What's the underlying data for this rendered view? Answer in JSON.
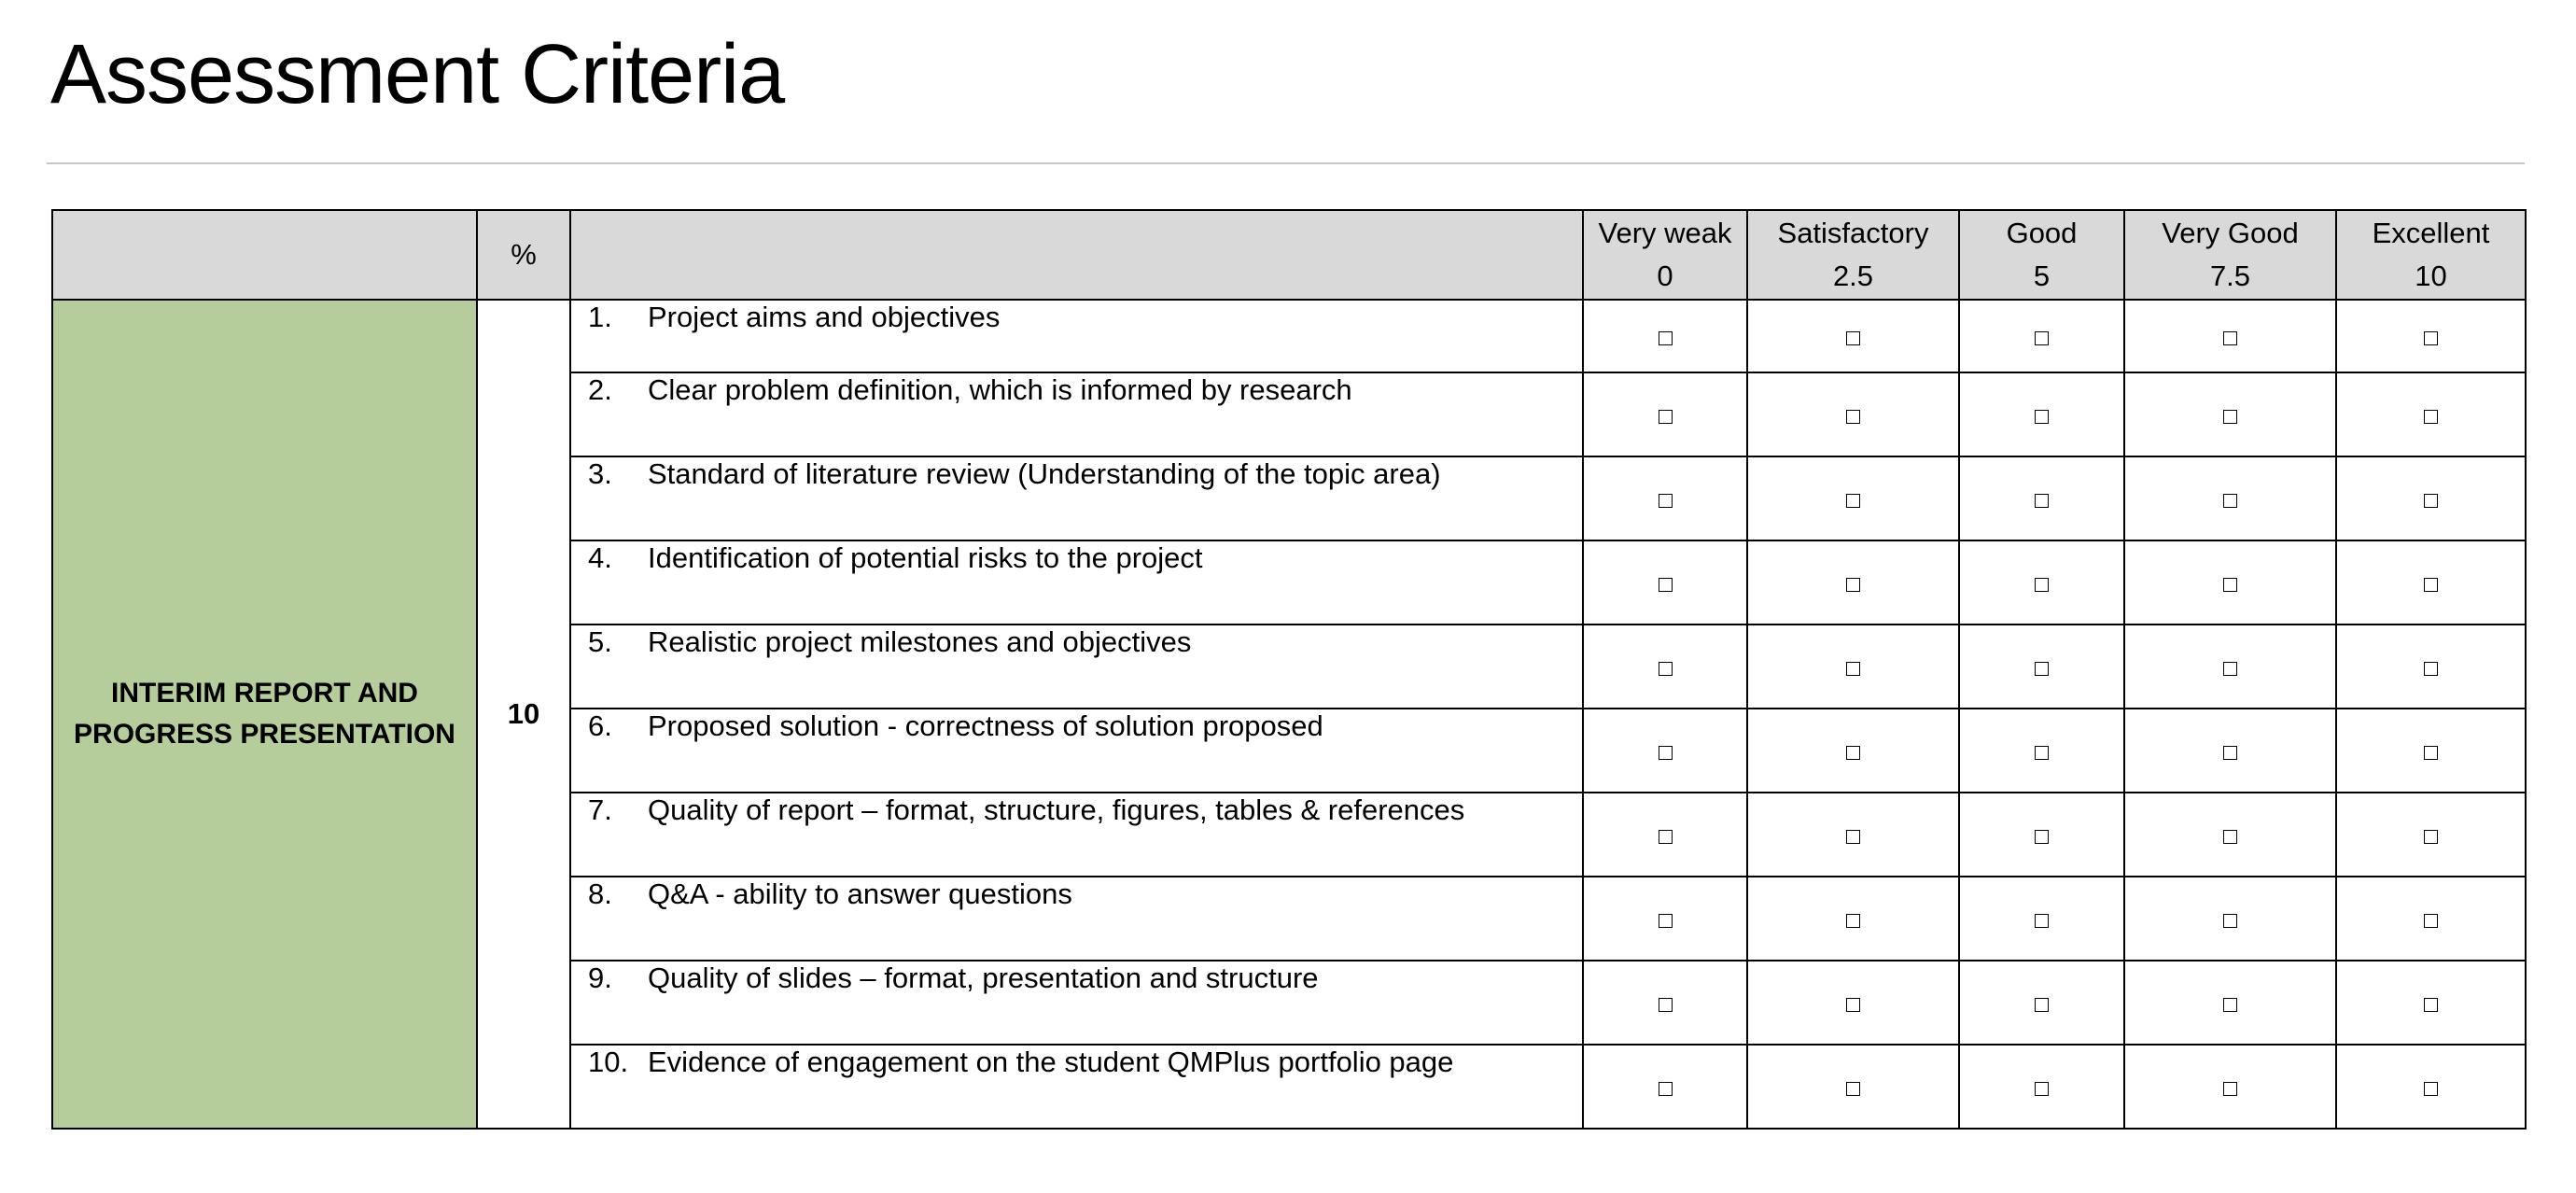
{
  "title": "Assessment Criteria",
  "header": {
    "percent_label": "%",
    "levels": [
      {
        "name": "Very weak",
        "score": "0"
      },
      {
        "name": "Satisfactory",
        "score": "2.5"
      },
      {
        "name": "Good",
        "score": "5"
      },
      {
        "name": "Very Good",
        "score": "7.5"
      },
      {
        "name": "Excellent",
        "score": "10"
      }
    ]
  },
  "section": {
    "name_line1": "INTERIM REPORT AND",
    "name_line2": "PROGRESS PRESENTATION",
    "weight": "10"
  },
  "criteria": [
    {
      "num": "1.",
      "text": "Project aims and objectives"
    },
    {
      "num": "2.",
      "text": "Clear problem definition, which is informed by research"
    },
    {
      "num": "3.",
      "text": "Standard of literature review (Understanding of the topic area)"
    },
    {
      "num": "4.",
      "text": "Identification of potential risks to the project"
    },
    {
      "num": "5.",
      "text": "Realistic project milestones and objectives"
    },
    {
      "num": "6.",
      "text": "Proposed solution - correctness of solution proposed"
    },
    {
      "num": "7.",
      "text": "Quality of report – format, structure, figures, tables & references"
    },
    {
      "num": "8.",
      "text": "Q&A - ability to answer questions"
    },
    {
      "num": "9.",
      "text": "Quality of slides – format, presentation and structure"
    },
    {
      "num": "10.",
      "text": "Evidence of engagement on the student QMPlus portfolio page"
    }
  ],
  "colors": {
    "header_bg": "#d9d9d9",
    "section_bg": "#b5cc9b",
    "border": "#000000",
    "rule": "#c6c6c6"
  }
}
